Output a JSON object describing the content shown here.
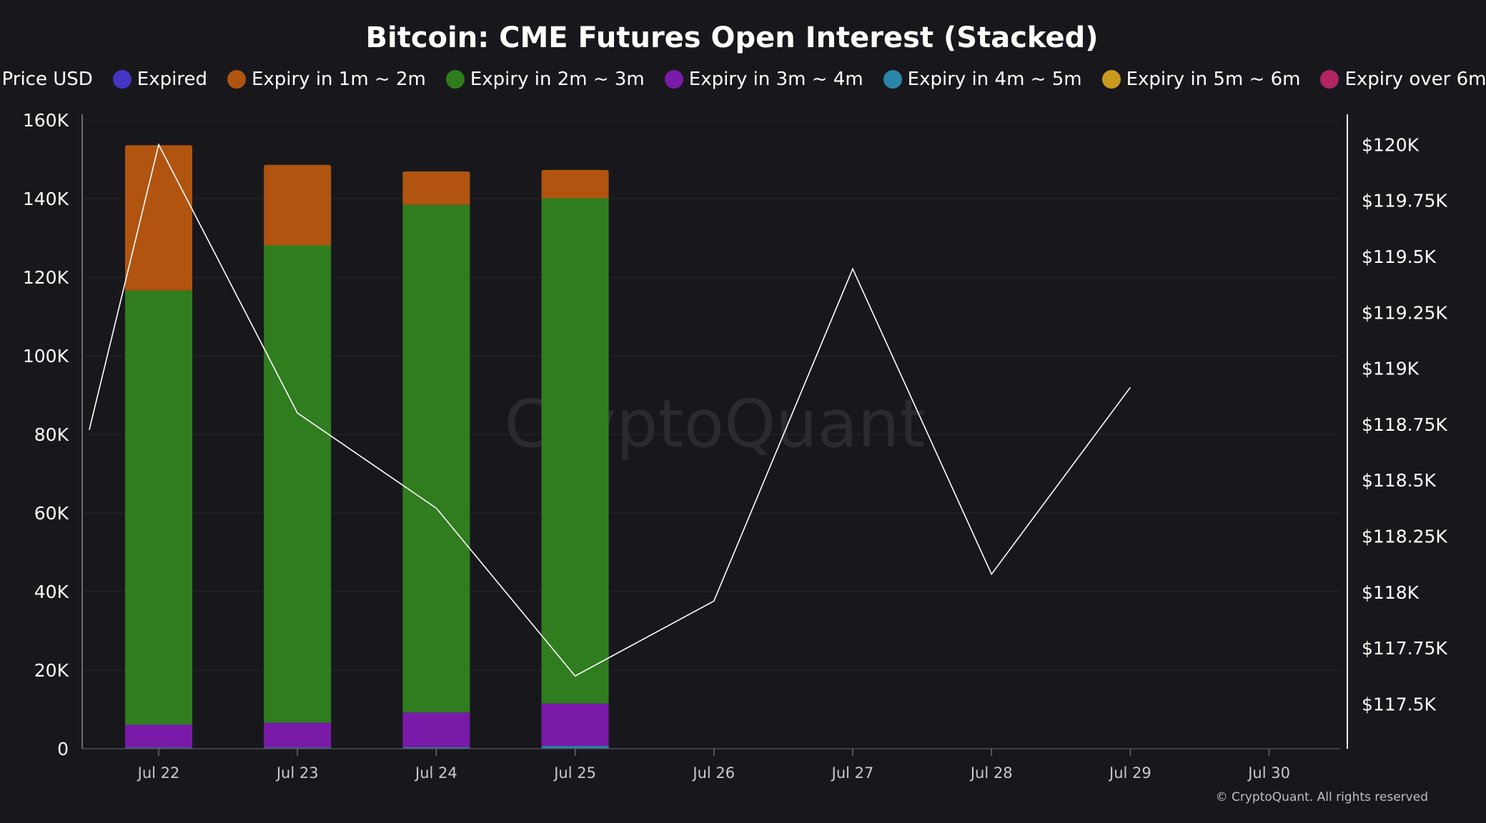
{
  "chart_data": {
    "type": "bar",
    "stacked": true,
    "title": "Bitcoin: CME Futures Open Interest (Stacked)",
    "categories": [
      "Jul 22",
      "Jul 23",
      "Jul 24",
      "Jul 25",
      "Jul 26",
      "Jul 27",
      "Jul 28",
      "Jul 29",
      "Jul 30"
    ],
    "series": [
      {
        "name": "Expired",
        "color": "#4535c4",
        "values": [
          0,
          0,
          0,
          0,
          null,
          null,
          null,
          null,
          null
        ]
      },
      {
        "name": "Expiry in 1m ~ 2m",
        "color": "#b05410",
        "values": [
          37000,
          20500,
          8500,
          7200,
          null,
          null,
          null,
          null,
          null
        ]
      },
      {
        "name": "Expiry in 2m ~ 3m",
        "color": "#2f7d1f",
        "values": [
          110500,
          121500,
          129200,
          128600,
          null,
          null,
          null,
          null,
          null
        ]
      },
      {
        "name": "Expiry in 3m ~ 4m",
        "color": "#7a1aa8",
        "values": [
          5800,
          6300,
          8800,
          10800,
          null,
          null,
          null,
          null,
          null
        ]
      },
      {
        "name": "Expiry in 4m ~ 5m",
        "color": "#2a86a8",
        "values": [
          300,
          300,
          400,
          700,
          null,
          null,
          null,
          null,
          null
        ]
      },
      {
        "name": "Expiry in 5m ~ 6m",
        "color": "#c99a20",
        "values": [
          0,
          0,
          0,
          0,
          null,
          null,
          null,
          null,
          null
        ]
      },
      {
        "name": "Expiry over 6m",
        "color": "#b02462",
        "values": [
          0,
          0,
          0,
          0,
          null,
          null,
          null,
          null,
          null
        ]
      }
    ],
    "stack_order": [
      "Expiry in 4m ~ 5m",
      "Expiry in 3m ~ 4m",
      "Expiry in 2m ~ 3m",
      "Expiry in 1m ~ 2m",
      "Expired",
      "Expiry in 5m ~ 6m",
      "Expiry over 6m"
    ],
    "price_series": {
      "name": "Price USD",
      "color": "#ffffff",
      "points": [
        {
          "x": -0.5,
          "y": 118725
        },
        {
          "x": 0,
          "y": 120000
        },
        {
          "x": 1,
          "y": 118800
        },
        {
          "x": 2,
          "y": 118375
        },
        {
          "x": 3,
          "y": 117625
        },
        {
          "x": 4,
          "y": 117960
        },
        {
          "x": 5,
          "y": 119445
        },
        {
          "x": 6,
          "y": 118080
        },
        {
          "x": 7,
          "y": 118915
        }
      ]
    },
    "y_left": {
      "min": 0,
      "max": 160000,
      "ticks": [
        0,
        20000,
        40000,
        60000,
        80000,
        100000,
        120000,
        140000,
        160000
      ],
      "tick_labels": [
        "0",
        "20K",
        "40K",
        "60K",
        "80K",
        "100K",
        "120K",
        "140K",
        "160K"
      ]
    },
    "y_right": {
      "min": 117300,
      "max": 120110,
      "ticks": [
        117500,
        117750,
        118000,
        118250,
        118500,
        118750,
        119000,
        119250,
        119500,
        119750,
        120000
      ],
      "tick_labels": [
        "$117.5K",
        "$117.75K",
        "$118K",
        "$118.25K",
        "$118.5K",
        "$118.75K",
        "$119K",
        "$119.25K",
        "$119.5K",
        "$119.75K",
        "$120K"
      ]
    },
    "legend_position": "top",
    "grid": true
  },
  "legend": [
    {
      "label": "Price USD",
      "kind": "line",
      "color": "#ffffff"
    },
    {
      "label": "Expired",
      "kind": "dot",
      "color": "#4535c4"
    },
    {
      "label": "Expiry in 1m ~ 2m",
      "kind": "dot",
      "color": "#b05410"
    },
    {
      "label": "Expiry in 2m ~ 3m",
      "kind": "dot",
      "color": "#2f7d1f"
    },
    {
      "label": "Expiry in 3m ~ 4m",
      "kind": "dot",
      "color": "#7a1aa8"
    },
    {
      "label": "Expiry in 4m ~ 5m",
      "kind": "dot",
      "color": "#2a86a8"
    },
    {
      "label": "Expiry in 5m ~ 6m",
      "kind": "dot",
      "color": "#c99a20"
    },
    {
      "label": "Expiry over 6m",
      "kind": "dot",
      "color": "#b02462"
    }
  ],
  "watermark": "CryptoQuant",
  "copyright": "© CryptoQuant. All rights reserved"
}
